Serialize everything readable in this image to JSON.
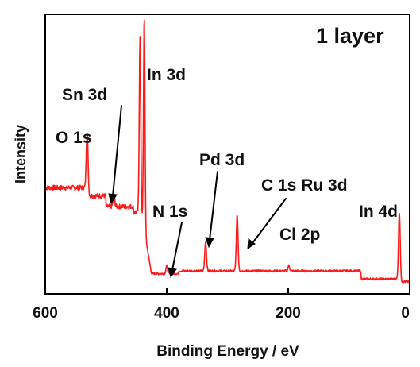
{
  "chart_data": {
    "type": "line",
    "title": "1 layer",
    "xlabel": "Binding Energy / eV",
    "ylabel": "Intensity",
    "xlim": [
      600,
      0
    ],
    "x_reversed": true,
    "x_ticks": [
      "600",
      "400",
      "200",
      "0"
    ],
    "x_tick_values": [
      600,
      400,
      200,
      0
    ],
    "y_ticks_labeled": false,
    "series_color": "#ff1a1a",
    "baseline_regions": [
      {
        "from": 600,
        "to": 532,
        "level": 0.36
      },
      {
        "from": 532,
        "to": 500,
        "level": 0.33
      },
      {
        "from": 500,
        "to": 455,
        "level": 0.29
      },
      {
        "from": 455,
        "to": 442,
        "level": 0.27
      },
      {
        "from": 425,
        "to": 380,
        "level": 0.04
      },
      {
        "from": 380,
        "to": 80,
        "level": 0.05
      },
      {
        "from": 80,
        "to": 20,
        "level": 0.02
      },
      {
        "from": 15,
        "to": 0,
        "level": 0.01
      }
    ],
    "peaks": [
      {
        "label": "O 1s",
        "x": 531,
        "y": 0.57
      },
      {
        "label": "Sn 3d",
        "x": 487,
        "y": 0.33
      },
      {
        "label": "In 3d",
        "x": 444,
        "y": 0.93
      },
      {
        "label": "In 3d",
        "x": 437,
        "y": 1.0
      },
      {
        "label": "N 1s",
        "x": 400,
        "y": 0.07
      },
      {
        "label": "Pd 3d",
        "x": 336,
        "y": 0.16
      },
      {
        "label": "C 1s Ru 3d",
        "x": 284,
        "y": 0.26
      },
      {
        "label": "Cl 2p",
        "x": 199,
        "y": 0.07
      },
      {
        "label": "In 4d",
        "x": 17,
        "y": 0.27
      }
    ],
    "annotations": [
      "O 1s",
      "Sn 3d",
      "In 3d",
      "N 1s",
      "Pd 3d",
      "C 1s Ru 3d",
      "Cl 2p",
      "In 4d"
    ]
  }
}
